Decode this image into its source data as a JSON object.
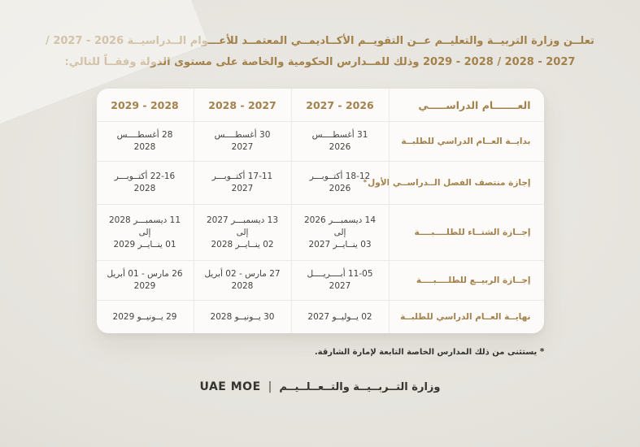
{
  "colors": {
    "accent": "#a3814b",
    "date_text": "#45423d",
    "dark_text": "#363430",
    "page_center": "#edebe6",
    "page_mid": "#e5e2dc",
    "page_edge": "#d7d4ce",
    "table_bg": "#fcfbf9"
  },
  "intro": {
    "line1": "تعلــن وزارة التربيــة والتعليــم عــن التقويــم الأكــاديمــي المعتمــد للأعـــوام الــدراسيــة 2026 - 2027 /",
    "line2": "2027 - 2028 / 2028 - 2029 وذلك للمــدارس الحكومية والخاصة على مستوى الدولة وفقــاً للتالي:"
  },
  "table": {
    "header": {
      "year_label": "العـــــــام الدراســـــي",
      "years": [
        "2026 - 2027",
        "2027 - 2028",
        "2028 - 2029"
      ]
    },
    "rows": [
      {
        "label": "بدايــة العــام الدراسي للطلبــة",
        "asterisk": false,
        "cells": [
          {
            "lines": [
              "31 أغسطــــس",
              "2026"
            ]
          },
          {
            "lines": [
              "30 أغسطــــس",
              "2027"
            ]
          },
          {
            "lines": [
              "28 أغسطــــس",
              "2028"
            ]
          }
        ]
      },
      {
        "label": "إجازة منتصف الفصل الــدراســي الأول",
        "asterisk": true,
        "cells": [
          {
            "lines": [
              "18-12 أكتــوبـــر",
              "2026"
            ]
          },
          {
            "lines": [
              "17-11 أكتــوبـــر",
              "2027"
            ]
          },
          {
            "lines": [
              "22-16 أكتــوبـــر",
              "2028"
            ]
          }
        ]
      },
      {
        "label": "إجــازة الشتــاء للطلــــبــــة",
        "asterisk": false,
        "cells": [
          {
            "lines": [
              "14 ديسمبـــر 2026",
              "إلى",
              "03 ينــايــر 2027"
            ]
          },
          {
            "lines": [
              "13 ديسمبـــر 2027",
              "إلى",
              "02 ينــايــر 2028"
            ]
          },
          {
            "lines": [
              "11 ديسمبـــر 2028",
              "إلى",
              "01 ينــايــر 2029"
            ]
          }
        ]
      },
      {
        "label": "إجــازة الربيــع للطلــــبــــة",
        "asterisk": false,
        "cells": [
          {
            "lines": [
              "11-05 أبــــريــــل",
              "2027"
            ]
          },
          {
            "lines": [
              "27 مارس - 02 أبريل",
              "2028"
            ]
          },
          {
            "lines": [
              "26 مارس - 01 أبريل",
              "2029"
            ]
          }
        ]
      },
      {
        "label": "نهايــة العــام الدراسي للطلبــة",
        "asterisk": false,
        "cells": [
          {
            "lines": [
              "02 يــوليــو 2027"
            ]
          },
          {
            "lines": [
              "30 يــونيــو 2028"
            ]
          },
          {
            "lines": [
              "29 يــونيــو 2029"
            ]
          }
        ]
      }
    ]
  },
  "footnote": {
    "marker": "*",
    "text": "يستثنى من ذلك المدارس الخاصة التابعة لإمارة الشارقة."
  },
  "footer": {
    "logo_ar": "وزارة التــربــيــة والتــعــلــيــم",
    "divider": "|",
    "logo_en": "UAE MOE"
  }
}
